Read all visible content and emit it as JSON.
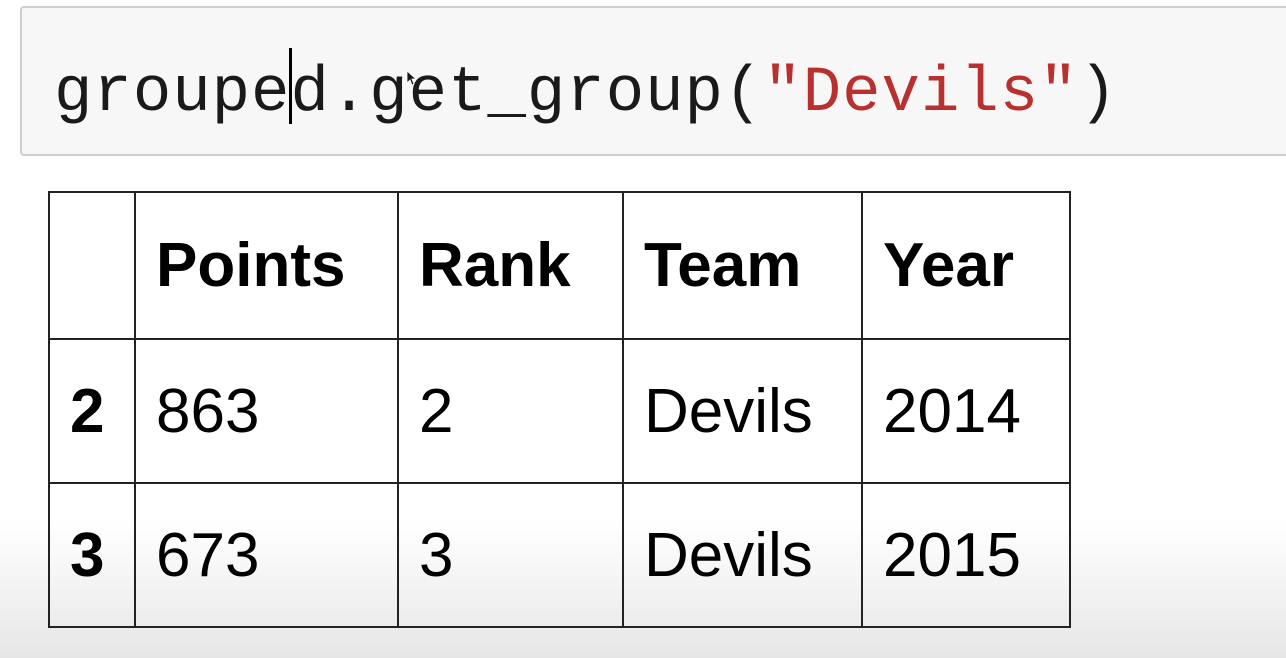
{
  "code_cell": {
    "code_before_cursor": "groupe",
    "code_after_cursor": "d.get_group(",
    "string_literal": "\"Devils\"",
    "code_end": ")"
  },
  "dataframe": {
    "columns": [
      "",
      "Points",
      "Rank",
      "Team",
      "Year"
    ],
    "rows": [
      {
        "index": "2",
        "cells": [
          "863",
          "2",
          "Devils",
          "2014"
        ]
      },
      {
        "index": "3",
        "cells": [
          "673",
          "3",
          "Devils",
          "2015"
        ]
      }
    ]
  },
  "colors": {
    "code_text": "#1a1a1a",
    "string_literal": "#b8312f",
    "cell_background": "#f7f7f7",
    "cell_border": "#cfcfcf",
    "table_border": "#222222"
  }
}
